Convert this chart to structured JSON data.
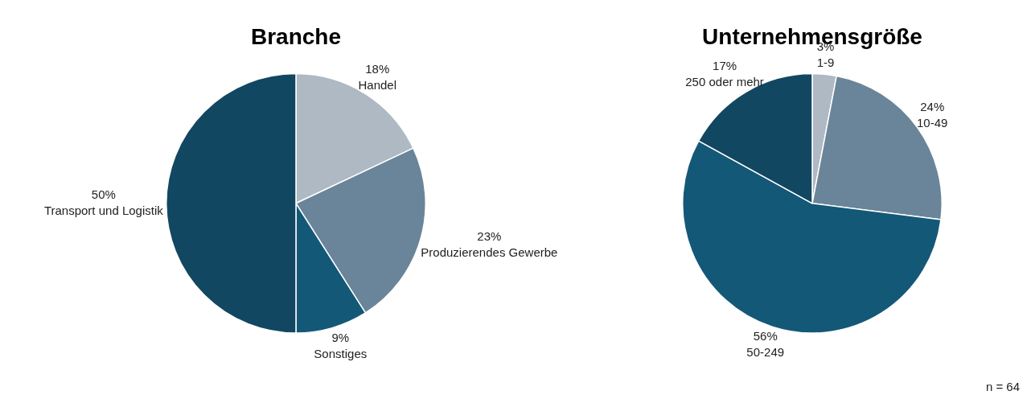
{
  "chart_data": [
    {
      "type": "pie",
      "title": "Branche",
      "categories": [
        "Handel",
        "Produzierendes Gewerbe",
        "Sonstiges",
        "Transport und Logistik"
      ],
      "values": [
        18,
        23,
        9,
        50
      ],
      "value_labels": [
        "18%",
        "23%",
        "9%",
        "50%"
      ],
      "colors": [
        "#aeb9c4",
        "#6a8599",
        "#145878",
        "#124762"
      ],
      "legend": false
    },
    {
      "type": "pie",
      "title": "Unternehmensgröße",
      "categories": [
        "1-9",
        "10-49",
        "50-249",
        "250 oder mehr"
      ],
      "values": [
        3,
        24,
        56,
        17
      ],
      "value_labels": [
        "3%",
        "24%",
        "56%",
        "17%"
      ],
      "colors": [
        "#aeb9c4",
        "#6a8599",
        "#145878",
        "#124762"
      ],
      "legend": false,
      "annotations": [
        "n = 64"
      ]
    }
  ]
}
